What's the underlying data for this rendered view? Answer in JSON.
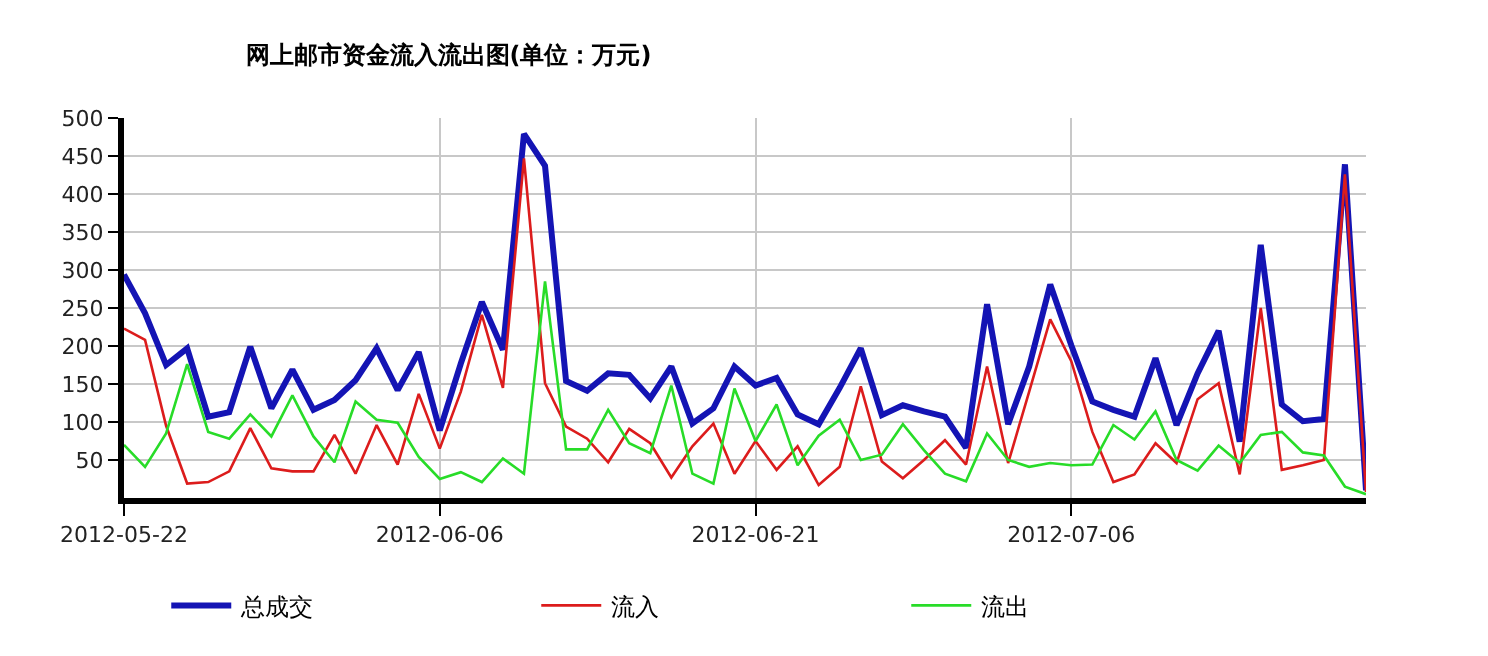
{
  "chart_data": {
    "type": "line",
    "title": "网上邮市资金流入流出图(单位：万元)",
    "x": [
      "2012-05-22",
      "2012-05-23",
      "2012-05-24",
      "2012-05-25",
      "2012-05-26",
      "2012-05-27",
      "2012-05-28",
      "2012-05-29",
      "2012-05-30",
      "2012-05-31",
      "2012-06-01",
      "2012-06-02",
      "2012-06-03",
      "2012-06-04",
      "2012-06-05",
      "2012-06-06",
      "2012-06-07",
      "2012-06-08",
      "2012-06-09",
      "2012-06-10",
      "2012-06-11",
      "2012-06-12",
      "2012-06-13",
      "2012-06-14",
      "2012-06-15",
      "2012-06-16",
      "2012-06-17",
      "2012-06-18",
      "2012-06-19",
      "2012-06-20",
      "2012-06-21",
      "2012-06-22",
      "2012-06-23",
      "2012-06-24",
      "2012-06-25",
      "2012-06-26",
      "2012-06-27",
      "2012-06-28",
      "2012-06-29",
      "2012-06-30",
      "2012-07-01",
      "2012-07-02",
      "2012-07-03",
      "2012-07-04",
      "2012-07-05",
      "2012-07-06",
      "2012-07-07",
      "2012-07-08",
      "2012-07-09",
      "2012-07-10",
      "2012-07-11",
      "2012-07-12",
      "2012-07-13",
      "2012-07-14",
      "2012-07-15",
      "2012-07-16",
      "2012-07-17",
      "2012-07-18",
      "2012-07-19",
      "2012-07-20"
    ],
    "series": [
      {
        "name": "总成交",
        "color": "#1414b4",
        "values": [
          294,
          243,
          175,
          197,
          107,
          113,
          199,
          118,
          169,
          116,
          129,
          155,
          197,
          142,
          192,
          89,
          177,
          258,
          195,
          479,
          437,
          154,
          141,
          164,
          162,
          131,
          173,
          98,
          118,
          173,
          148,
          158,
          110,
          97,
          145,
          197,
          109,
          122,
          114,
          107,
          66,
          255,
          97,
          173,
          281,
          201,
          127,
          116,
          107,
          184,
          96,
          164,
          220,
          74,
          333,
          123,
          101,
          104,
          439,
          10
        ]
      },
      {
        "name": "流入",
        "color": "#dc1c1c",
        "values": [
          223,
          208,
          95,
          19,
          21,
          35,
          92,
          39,
          35,
          35,
          83,
          32,
          96,
          44,
          137,
          65,
          140,
          241,
          145,
          447,
          151,
          94,
          78,
          47,
          91,
          72,
          27,
          68,
          98,
          32,
          75,
          37,
          68,
          17,
          41,
          147,
          48,
          26,
          50,
          76,
          44,
          173,
          46,
          140,
          235,
          180,
          87,
          21,
          31,
          72,
          46,
          130,
          151,
          31,
          250,
          37,
          43,
          50,
          426,
          8
        ]
      },
      {
        "name": "流出",
        "color": "#28dc28",
        "values": [
          70,
          41,
          85,
          176,
          87,
          78,
          110,
          81,
          135,
          81,
          47,
          127,
          103,
          99,
          54,
          25,
          34,
          21,
          52,
          32,
          285,
          64,
          64,
          116,
          72,
          59,
          148,
          32,
          19,
          144,
          75,
          123,
          43,
          82,
          103,
          50,
          57,
          97,
          63,
          32,
          22,
          85,
          50,
          41,
          46,
          43,
          44,
          96,
          77,
          114,
          50,
          36,
          69,
          46,
          83,
          87,
          60,
          56,
          15,
          5
        ]
      }
    ],
    "xlim": [
      "2012-05-22",
      "2012-07-20"
    ],
    "xticks": [
      "2012-05-22",
      "2012-06-06",
      "2012-06-21",
      "2012-07-06"
    ],
    "ylim": [
      0,
      500
    ],
    "yticks": [
      50,
      100,
      150,
      200,
      250,
      300,
      350,
      400,
      450,
      500
    ],
    "grid": true,
    "legend": "bottom",
    "marker": "none",
    "line_style": "solid"
  }
}
